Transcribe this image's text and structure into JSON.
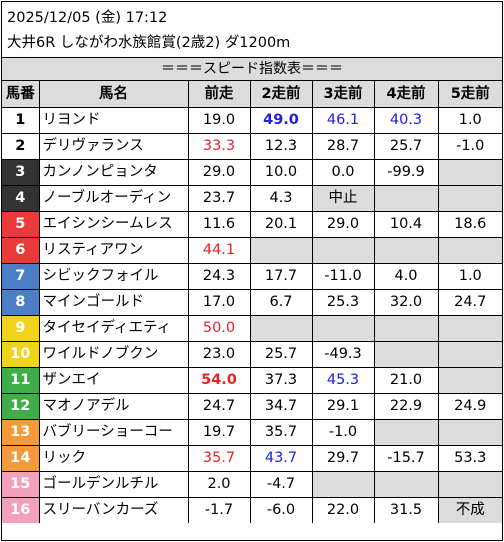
{
  "header": {
    "date_line": "2025/12/05 (金) 17:12",
    "race_line": "大井6R しながわ水族館賞(2歳2) ダ1200m"
  },
  "section_title": "＝＝＝スピード指数表＝＝＝",
  "columns": [
    "馬番",
    "馬名",
    "前走",
    "2走前",
    "3走前",
    "4走前",
    "5走前"
  ],
  "colors": {
    "red_value": "#e8222b",
    "blue_value": "#2020e0",
    "empty_cell": "#dcdcdc"
  },
  "rows": [
    {
      "num": "1",
      "name": "リヨンド",
      "num_bg": "#ffffff",
      "num_fg": "#000000",
      "vals": [
        {
          "t": "19.0"
        },
        {
          "t": "49.0",
          "c": "blue",
          "b": true
        },
        {
          "t": "46.1",
          "c": "blue"
        },
        {
          "t": "40.3",
          "c": "blue"
        },
        {
          "t": "1.0"
        }
      ]
    },
    {
      "num": "2",
      "name": "デリヴァランス",
      "num_bg": "#ffffff",
      "num_fg": "#000000",
      "vals": [
        {
          "t": "33.3",
          "c": "red"
        },
        {
          "t": "12.3"
        },
        {
          "t": "28.7"
        },
        {
          "t": "25.7"
        },
        {
          "t": "-1.0"
        }
      ]
    },
    {
      "num": "3",
      "name": "カンノンピョンタ",
      "num_bg": "#333333",
      "num_fg": "#ffffff",
      "vals": [
        {
          "t": "29.0"
        },
        {
          "t": "10.0"
        },
        {
          "t": "0.0"
        },
        {
          "t": "-99.9"
        },
        {
          "t": ""
        }
      ]
    },
    {
      "num": "4",
      "name": "ノーブルオーディン",
      "num_bg": "#333333",
      "num_fg": "#ffffff",
      "vals": [
        {
          "t": "23.7"
        },
        {
          "t": "4.3"
        },
        {
          "t": "中止",
          "e": true
        },
        {
          "t": ""
        },
        {
          "t": ""
        }
      ]
    },
    {
      "num": "5",
      "name": "エイシンシームレス",
      "num_bg": "#ea3a3a",
      "num_fg": "#ffffff",
      "vals": [
        {
          "t": "11.6"
        },
        {
          "t": "20.1"
        },
        {
          "t": "29.0"
        },
        {
          "t": "10.4"
        },
        {
          "t": "18.6"
        }
      ]
    },
    {
      "num": "6",
      "name": "リスティアワン",
      "num_bg": "#ea3a3a",
      "num_fg": "#ffffff",
      "vals": [
        {
          "t": "44.1",
          "c": "red"
        },
        {
          "t": ""
        },
        {
          "t": ""
        },
        {
          "t": ""
        },
        {
          "t": ""
        }
      ]
    },
    {
      "num": "7",
      "name": "シビックフォイル",
      "num_bg": "#4a7ec6",
      "num_fg": "#ffffff",
      "vals": [
        {
          "t": "24.3"
        },
        {
          "t": "17.7"
        },
        {
          "t": "-11.0"
        },
        {
          "t": "4.0"
        },
        {
          "t": "1.0"
        }
      ]
    },
    {
      "num": "8",
      "name": "マインゴールド",
      "num_bg": "#4a7ec6",
      "num_fg": "#ffffff",
      "vals": [
        {
          "t": "17.0"
        },
        {
          "t": "6.7"
        },
        {
          "t": "25.3"
        },
        {
          "t": "32.0"
        },
        {
          "t": "24.7"
        }
      ]
    },
    {
      "num": "9",
      "name": "タイセイディエティ",
      "num_bg": "#f2d31b",
      "num_fg": "#ffffff",
      "vals": [
        {
          "t": "50.0",
          "c": "red"
        },
        {
          "t": ""
        },
        {
          "t": ""
        },
        {
          "t": ""
        },
        {
          "t": ""
        }
      ]
    },
    {
      "num": "10",
      "name": "ワイルドノブクン",
      "num_bg": "#f2d31b",
      "num_fg": "#ffffff",
      "vals": [
        {
          "t": "23.0"
        },
        {
          "t": "25.7"
        },
        {
          "t": "-49.3"
        },
        {
          "t": ""
        },
        {
          "t": ""
        }
      ]
    },
    {
      "num": "11",
      "name": "ザンエイ",
      "num_bg": "#3fae49",
      "num_fg": "#ffffff",
      "vals": [
        {
          "t": "54.0",
          "c": "red",
          "b": true
        },
        {
          "t": "37.3"
        },
        {
          "t": "45.3",
          "c": "blue"
        },
        {
          "t": "21.0"
        },
        {
          "t": ""
        }
      ]
    },
    {
      "num": "12",
      "name": "マオノアデル",
      "num_bg": "#3fae49",
      "num_fg": "#ffffff",
      "vals": [
        {
          "t": "24.7"
        },
        {
          "t": "34.7"
        },
        {
          "t": "29.1"
        },
        {
          "t": "22.9"
        },
        {
          "t": "24.9"
        }
      ]
    },
    {
      "num": "13",
      "name": "バブリーショーコー",
      "num_bg": "#f29a3c",
      "num_fg": "#ffffff",
      "vals": [
        {
          "t": "19.7"
        },
        {
          "t": "35.7"
        },
        {
          "t": "-1.0"
        },
        {
          "t": ""
        },
        {
          "t": ""
        }
      ]
    },
    {
      "num": "14",
      "name": "リック",
      "num_bg": "#f29a3c",
      "num_fg": "#ffffff",
      "vals": [
        {
          "t": "35.7",
          "c": "red"
        },
        {
          "t": "43.7",
          "c": "blue"
        },
        {
          "t": "29.7"
        },
        {
          "t": "-15.7"
        },
        {
          "t": "53.3"
        }
      ]
    },
    {
      "num": "15",
      "name": "ゴールデンルチル",
      "num_bg": "#f4a0bd",
      "num_fg": "#ffffff",
      "vals": [
        {
          "t": "2.0"
        },
        {
          "t": "-4.7"
        },
        {
          "t": ""
        },
        {
          "t": ""
        },
        {
          "t": ""
        }
      ]
    },
    {
      "num": "16",
      "name": "スリーバンカーズ",
      "num_bg": "#f4a0bd",
      "num_fg": "#ffffff",
      "vals": [
        {
          "t": "-1.7"
        },
        {
          "t": "-6.0"
        },
        {
          "t": "22.0"
        },
        {
          "t": "31.5"
        },
        {
          "t": "不成",
          "e": true
        }
      ]
    }
  ]
}
